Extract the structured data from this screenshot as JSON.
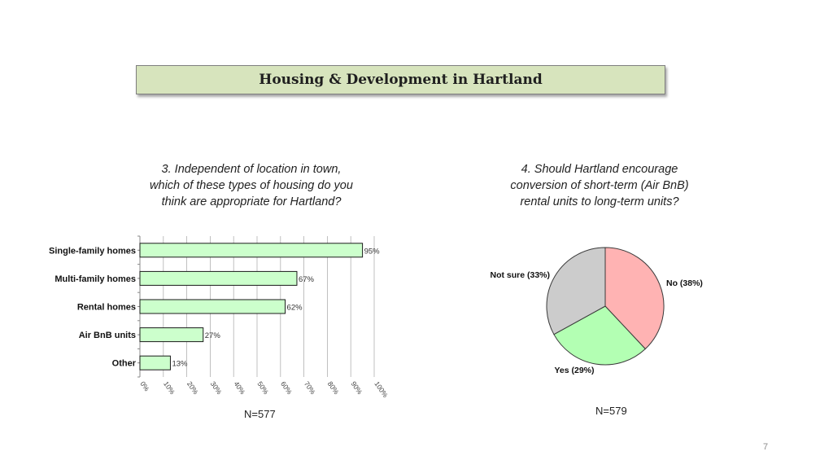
{
  "slide": {
    "title": "Housing & Development in Hartland",
    "page_number": "7"
  },
  "q3": {
    "question_lines": [
      "3. Independent of location in town,",
      "which of these types of housing do you",
      "think are appropriate for Hartland?"
    ],
    "n_label": "N=577"
  },
  "q4": {
    "question_lines": [
      "4. Should Hartland encourage",
      "conversion of short-term (Air BnB)",
      "rental units to long-term units?"
    ],
    "n_label": "N=579"
  },
  "chart_data": [
    {
      "type": "bar",
      "orientation": "horizontal",
      "categories": [
        "Single-family homes",
        "Multi-family homes",
        "Rental homes",
        "Air BnB units",
        "Other"
      ],
      "values": [
        95,
        67,
        62,
        27,
        13
      ],
      "data_labels": [
        "95%",
        "67%",
        "62%",
        "27%",
        "13%"
      ],
      "xlim": [
        0,
        100
      ],
      "x_ticks": [
        0,
        10,
        20,
        30,
        40,
        50,
        60,
        70,
        80,
        90,
        100
      ],
      "x_tick_labels": [
        "0%",
        "10%",
        "20%",
        "30%",
        "40%",
        "50%",
        "60%",
        "70%",
        "80%",
        "90%",
        "100%"
      ],
      "grid": true,
      "colors": {
        "bar_fill": "#ccffcc",
        "bar_stroke": "#1a1a1a",
        "grid": "#b0b0b0"
      },
      "title": "",
      "xlabel": "",
      "ylabel": ""
    },
    {
      "type": "pie",
      "slices": [
        {
          "label": "No (38%)",
          "value": 38,
          "color": "#ffb3b3"
        },
        {
          "label": "Yes (29%)",
          "value": 29,
          "color": "#b3ffb3"
        },
        {
          "label": "Not sure (33%)",
          "value": 33,
          "color": "#cccccc"
        }
      ],
      "start": "12 o'clock",
      "direction": "clockwise",
      "title": ""
    }
  ]
}
